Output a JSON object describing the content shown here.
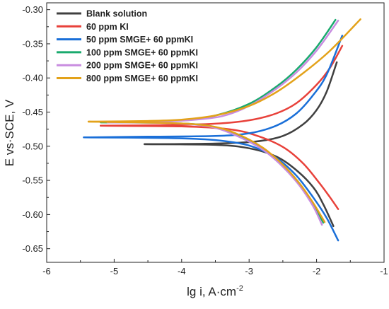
{
  "chart_data": {
    "type": "line",
    "xlabel": "lg i, A·cm",
    "xlabel_sup": "-2",
    "ylabel": "E vs·SCE, V",
    "xlim": [
      -6,
      -1
    ],
    "ylim": [
      -0.67,
      -0.29
    ],
    "x_ticks": [
      -6,
      -5,
      -4,
      -3,
      -2,
      -1
    ],
    "x_tick_labels": [
      "-6",
      "-5",
      "-4",
      "-3",
      "-2",
      "-1"
    ],
    "y_ticks": [
      -0.65,
      -0.6,
      -0.55,
      -0.5,
      -0.45,
      -0.4,
      -0.35,
      -0.3
    ],
    "y_tick_labels": [
      "-0.65",
      "-0.60",
      "-0.55",
      "-0.50",
      "-0.45",
      "-0.40",
      "-0.35",
      "-0.30"
    ],
    "grid": false,
    "legend_position": "top-left",
    "series": [
      {
        "name": "Blank solution",
        "color": "#404040",
        "anodic": [
          [
            -4.55,
            -0.497
          ],
          [
            -3.5,
            -0.496
          ],
          [
            -2.9,
            -0.493
          ],
          [
            -2.5,
            -0.485
          ],
          [
            -2.2,
            -0.468
          ],
          [
            -2.0,
            -0.447
          ],
          [
            -1.85,
            -0.42
          ],
          [
            -1.7,
            -0.377
          ]
        ],
        "cathodic": [
          [
            -4.55,
            -0.497
          ],
          [
            -3.5,
            -0.498
          ],
          [
            -3.0,
            -0.503
          ],
          [
            -2.6,
            -0.515
          ],
          [
            -2.3,
            -0.535
          ],
          [
            -2.05,
            -0.56
          ],
          [
            -1.9,
            -0.585
          ],
          [
            -1.75,
            -0.617
          ]
        ]
      },
      {
        "name": "60 ppm KI",
        "color": "#e8413a",
        "anodic": [
          [
            -5.2,
            -0.47
          ],
          [
            -4.2,
            -0.469
          ],
          [
            -3.5,
            -0.467
          ],
          [
            -3.0,
            -0.462
          ],
          [
            -2.6,
            -0.452
          ],
          [
            -2.3,
            -0.437
          ],
          [
            -2.0,
            -0.41
          ],
          [
            -1.8,
            -0.385
          ],
          [
            -1.62,
            -0.353
          ]
        ],
        "cathodic": [
          [
            -5.2,
            -0.47
          ],
          [
            -4.0,
            -0.471
          ],
          [
            -3.3,
            -0.475
          ],
          [
            -2.9,
            -0.484
          ],
          [
            -2.5,
            -0.501
          ],
          [
            -2.2,
            -0.525
          ],
          [
            -1.95,
            -0.555
          ],
          [
            -1.8,
            -0.575
          ],
          [
            -1.68,
            -0.592
          ]
        ]
      },
      {
        "name": "50 ppm SMGE+ 60 ppmKI",
        "color": "#1a6fd8",
        "anodic": [
          [
            -5.45,
            -0.487
          ],
          [
            -4.5,
            -0.486
          ],
          [
            -3.5,
            -0.485
          ],
          [
            -3.0,
            -0.481
          ],
          [
            -2.6,
            -0.47
          ],
          [
            -2.3,
            -0.452
          ],
          [
            -2.05,
            -0.425
          ],
          [
            -1.85,
            -0.395
          ],
          [
            -1.62,
            -0.338
          ]
        ],
        "cathodic": [
          [
            -5.45,
            -0.487
          ],
          [
            -4.2,
            -0.488
          ],
          [
            -3.5,
            -0.491
          ],
          [
            -3.0,
            -0.499
          ],
          [
            -2.6,
            -0.517
          ],
          [
            -2.3,
            -0.543
          ],
          [
            -2.05,
            -0.575
          ],
          [
            -1.85,
            -0.605
          ],
          [
            -1.68,
            -0.638
          ]
        ]
      },
      {
        "name": "100 ppm SMGE+ 60 ppmKI",
        "color": "#1aaa6e",
        "anodic": [
          [
            -5.2,
            -0.465
          ],
          [
            -4.5,
            -0.464
          ],
          [
            -4.0,
            -0.462
          ],
          [
            -3.5,
            -0.455
          ],
          [
            -3.0,
            -0.438
          ],
          [
            -2.6,
            -0.413
          ],
          [
            -2.3,
            -0.388
          ],
          [
            -2.0,
            -0.355
          ],
          [
            -1.72,
            -0.315
          ]
        ],
        "cathodic": [
          [
            -5.2,
            -0.465
          ],
          [
            -4.2,
            -0.466
          ],
          [
            -3.6,
            -0.47
          ],
          [
            -3.2,
            -0.482
          ],
          [
            -2.8,
            -0.503
          ],
          [
            -2.5,
            -0.528
          ],
          [
            -2.25,
            -0.555
          ],
          [
            -2.05,
            -0.585
          ],
          [
            -1.9,
            -0.612
          ]
        ]
      },
      {
        "name": "200 ppm SMGE+ 60 ppmKI",
        "color": "#c88ce0",
        "anodic": [
          [
            -5.1,
            -0.465
          ],
          [
            -4.4,
            -0.464
          ],
          [
            -3.9,
            -0.462
          ],
          [
            -3.4,
            -0.456
          ],
          [
            -3.0,
            -0.441
          ],
          [
            -2.6,
            -0.416
          ],
          [
            -2.3,
            -0.392
          ],
          [
            -2.0,
            -0.36
          ],
          [
            -1.68,
            -0.316
          ]
        ],
        "cathodic": [
          [
            -5.1,
            -0.465
          ],
          [
            -4.2,
            -0.466
          ],
          [
            -3.6,
            -0.471
          ],
          [
            -3.2,
            -0.484
          ],
          [
            -2.8,
            -0.505
          ],
          [
            -2.5,
            -0.53
          ],
          [
            -2.25,
            -0.558
          ],
          [
            -2.05,
            -0.588
          ],
          [
            -1.92,
            -0.615
          ]
        ]
      },
      {
        "name": "800 ppm SMGE+ 60 ppmKI",
        "color": "#e3a21a",
        "anodic": [
          [
            -5.38,
            -0.464
          ],
          [
            -4.5,
            -0.463
          ],
          [
            -4.0,
            -0.461
          ],
          [
            -3.5,
            -0.455
          ],
          [
            -3.0,
            -0.441
          ],
          [
            -2.6,
            -0.421
          ],
          [
            -2.2,
            -0.393
          ],
          [
            -1.8,
            -0.36
          ],
          [
            -1.35,
            -0.314
          ]
        ],
        "cathodic": [
          [
            -5.38,
            -0.464
          ],
          [
            -4.2,
            -0.466
          ],
          [
            -3.6,
            -0.47
          ],
          [
            -3.2,
            -0.481
          ],
          [
            -2.8,
            -0.502
          ],
          [
            -2.5,
            -0.527
          ],
          [
            -2.25,
            -0.555
          ],
          [
            -2.05,
            -0.583
          ],
          [
            -1.88,
            -0.611
          ]
        ]
      }
    ]
  }
}
